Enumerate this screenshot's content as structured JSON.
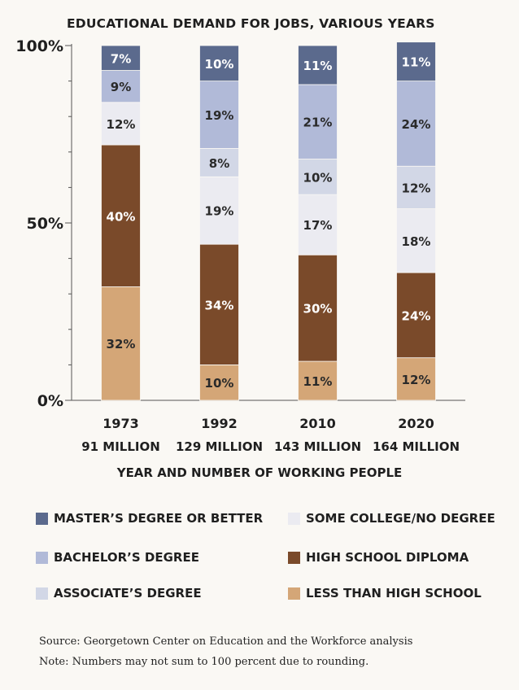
{
  "chart_data": {
    "type": "bar",
    "stacked": true,
    "title": "EDUCATIONAL DEMAND FOR JOBS, VARIOUS YEARS",
    "xlabel": "YEAR AND NUMBER OF WORKING PEOPLE",
    "ylabel": "",
    "ylim": [
      0,
      100
    ],
    "y_ticks": [
      "0%",
      "50%",
      "100%"
    ],
    "categories": [
      {
        "year": "1973",
        "workers": "91 MILLION"
      },
      {
        "year": "1992",
        "workers": "129 MILLION"
      },
      {
        "year": "2010",
        "workers": "143 MILLION"
      },
      {
        "year": "2020",
        "workers": "164 MILLION"
      }
    ],
    "series": [
      {
        "name": "LESS THAN HIGH SCHOOL",
        "color": "#d4a677",
        "label_color": "#2a2a2a",
        "values": [
          32,
          10,
          11,
          12
        ]
      },
      {
        "name": "HIGH SCHOOL DIPLOMA",
        "color": "#7a4a2a",
        "label_color": "#ffffff",
        "values": [
          40,
          34,
          30,
          24
        ]
      },
      {
        "name": "SOME COLLEGE/NO DEGREE",
        "color": "#ebebf1",
        "label_color": "#2a2a2a",
        "values": [
          12,
          19,
          17,
          18
        ]
      },
      {
        "name": "ASSOCIATE'S DEGREE",
        "color": "#d2d7e6",
        "label_color": "#2a2a2a",
        "values": [
          0,
          8,
          10,
          12
        ]
      },
      {
        "name": "BACHELOR'S DEGREE",
        "color": "#b1bad8",
        "label_color": "#2a2a2a",
        "values": [
          9,
          19,
          21,
          24
        ]
      },
      {
        "name": "MASTER'S DEGREE OR BETTER",
        "color": "#5b6a8d",
        "label_color": "#ffffff",
        "values": [
          7,
          10,
          11,
          11
        ]
      }
    ],
    "legend_position": "bottom",
    "grid": false
  },
  "legend": [
    {
      "label": "MASTER’S DEGREE OR BETTER",
      "color": "#5b6a8d"
    },
    {
      "label": "SOME COLLEGE/NO DEGREE",
      "color": "#ebebf1"
    },
    {
      "label": "BACHELOR’S DEGREE",
      "color": "#b1bad8"
    },
    {
      "label": "HIGH SCHOOL DIPLOMA",
      "color": "#7a4a2a"
    },
    {
      "label": "ASSOCIATE’S DEGREE",
      "color": "#d2d7e6"
    },
    {
      "label": "LESS THAN HIGH SCHOOL",
      "color": "#d4a677"
    }
  ],
  "footer": {
    "source": "Source: Georgetown Center on Education and the Workforce analysis",
    "note": "Note: Numbers may not sum to 100 percent due to rounding."
  }
}
